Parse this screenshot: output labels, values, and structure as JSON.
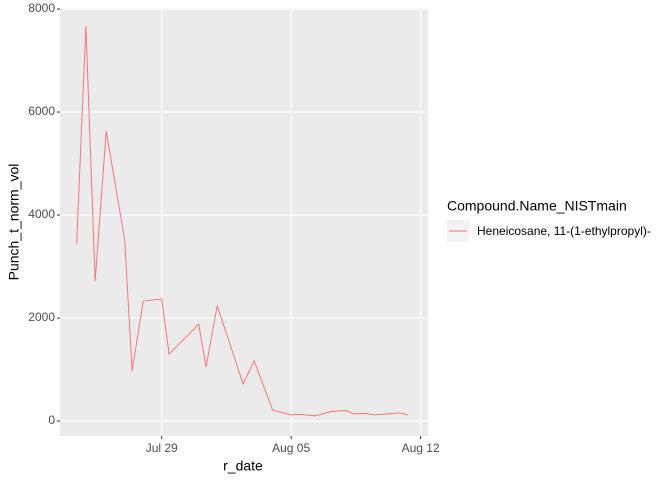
{
  "chart_data": {
    "type": "line",
    "x_label": "r_date",
    "y_label": "Punch_t_norm_vol",
    "x": [
      24.4,
      24.9,
      25.4,
      26.0,
      27.0,
      27.4,
      28.0,
      29.0,
      29.4,
      31.0,
      31.4,
      32.0,
      32.8,
      33.4,
      34.0,
      35.0,
      36.0,
      36.5,
      37.3,
      38.1,
      38.9,
      39.4,
      40.0,
      40.5,
      41.3,
      41.8,
      42.3
    ],
    "series": [
      {
        "name": "Heneicosane, 11-(1-ethylpropyl)-",
        "color": "#F8766D",
        "values": [
          3450,
          7670,
          2720,
          5630,
          3510,
          970,
          2330,
          2370,
          1300,
          1880,
          1050,
          2240,
          1380,
          720,
          1170,
          210,
          120,
          130,
          100,
          180,
          210,
          140,
          150,
          120,
          140,
          160,
          120
        ]
      }
    ],
    "legend_title": "Compound.Name_NISTmain",
    "xlim": [
      23.5,
      43.4
    ],
    "xticks": [
      {
        "value": 29,
        "label": "Jul 29"
      },
      {
        "value": 36,
        "label": "Aug 05"
      },
      {
        "value": 43,
        "label": "Aug 12"
      }
    ],
    "ylim": [
      -290,
      8020
    ],
    "yticks": [
      0,
      2000,
      4000,
      6000,
      8000
    ],
    "grid": true,
    "legend_position": "right"
  }
}
